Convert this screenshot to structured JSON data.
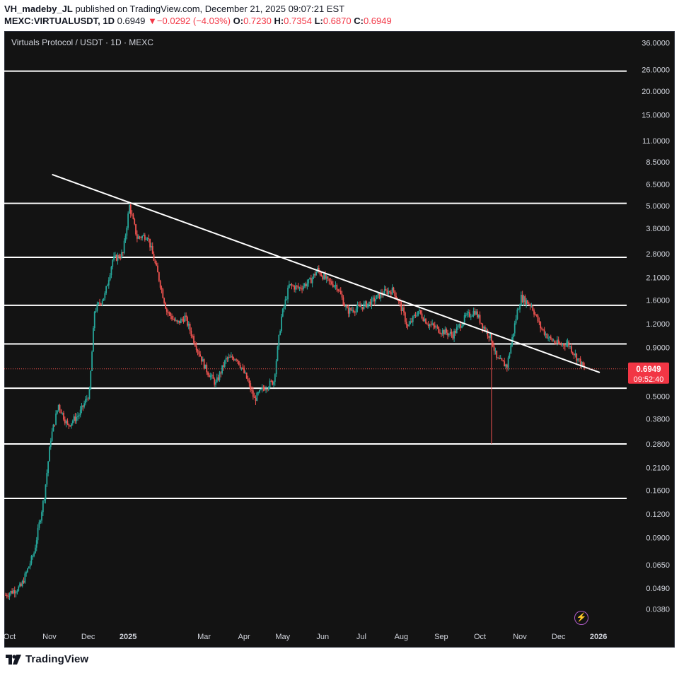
{
  "header": {
    "publisher": "VH_madeby_JL",
    "published_text": "published on TradingView.com, December 21, 2025 09:07:21 EST",
    "symbol": "MEXC:VIRTUALUSDT, 1D",
    "last": "0.6949",
    "change_arrow": "▼",
    "change": "−0.0292 (−4.03%)",
    "o_label": "O:",
    "o_value": "0.7230",
    "h_label": "H:",
    "h_value": "0.7354",
    "l_label": "L:",
    "l_value": "0.6870",
    "c_label": "C:",
    "c_value": "0.6949"
  },
  "symbol_title": "Virtuals Protocol / USDT · 1D · MEXC",
  "price_badge": {
    "price": "0.6949",
    "countdown": "09:52:40"
  },
  "footer": {
    "brand": "TradingView"
  },
  "colors": {
    "background": "#131313",
    "up": "#26a69a",
    "down": "#ef5350",
    "axis_text": "#d1d4dc",
    "level_line": "#ffffff",
    "badge": "#f23645"
  },
  "icons": {
    "alert": "lightning-bolt-icon",
    "logo": "tradingview-logo-icon"
  },
  "chart_data": {
    "type": "candlestick",
    "title": "Virtuals Protocol / USDT · 1D · MEXC",
    "y_scale": "log",
    "ylim": [
      0.033,
      40
    ],
    "y_ticks": [
      "36.0000",
      "26.0000",
      "20.0000",
      "15.0000",
      "11.0000",
      "8.5000",
      "6.5000",
      "5.0000",
      "3.8000",
      "2.8000",
      "2.1000",
      "1.6000",
      "1.2000",
      "0.9000",
      "0.5000",
      "0.3800",
      "0.2800",
      "0.2100",
      "0.1600",
      "0.1200",
      "0.0900",
      "0.0650",
      "0.0490",
      "0.0380"
    ],
    "x_ticks": [
      "Oct",
      "Nov",
      "Dec",
      "2025",
      "Mar",
      "Apr",
      "May",
      "Jun",
      "Jul",
      "Aug",
      "Sep",
      "Oct",
      "Nov",
      "Dec",
      "2026"
    ],
    "x_range": [
      "2024-09-28",
      "2026-01-02"
    ],
    "horizontal_levels": [
      25.5,
      5.15,
      2.68,
      1.5,
      0.94,
      0.55,
      0.28,
      0.145
    ],
    "trendline": {
      "from": [
        "2024-11-03",
        7.3
      ],
      "to": [
        "2026-01-02",
        0.665
      ]
    },
    "last_price": 0.6949,
    "price_path": [
      [
        "2024-09-28",
        0.045
      ],
      [
        "2024-10-10",
        0.05
      ],
      [
        "2024-10-20",
        0.075
      ],
      [
        "2024-10-28",
        0.15
      ],
      [
        "2024-11-02",
        0.3
      ],
      [
        "2024-11-08",
        0.45
      ],
      [
        "2024-11-15",
        0.35
      ],
      [
        "2024-11-24",
        0.4
      ],
      [
        "2024-12-02",
        0.52
      ],
      [
        "2024-12-06",
        1.4
      ],
      [
        "2024-12-14",
        1.7
      ],
      [
        "2024-12-20",
        2.6
      ],
      [
        "2024-12-28",
        2.8
      ],
      [
        "2025-01-02",
        5.0
      ],
      [
        "2025-01-08",
        3.4
      ],
      [
        "2025-01-16",
        3.5
      ],
      [
        "2025-01-24",
        2.2
      ],
      [
        "2025-01-31",
        1.4
      ],
      [
        "2025-02-08",
        1.2
      ],
      [
        "2025-02-14",
        1.3
      ],
      [
        "2025-02-22",
        0.95
      ],
      [
        "2025-03-02",
        0.7
      ],
      [
        "2025-03-10",
        0.58
      ],
      [
        "2025-03-18",
        0.78
      ],
      [
        "2025-03-26",
        0.8
      ],
      [
        "2025-04-03",
        0.62
      ],
      [
        "2025-04-09",
        0.48
      ],
      [
        "2025-04-16",
        0.55
      ],
      [
        "2025-04-24",
        0.6
      ],
      [
        "2025-04-30",
        1.3
      ],
      [
        "2025-05-06",
        1.9
      ],
      [
        "2025-05-14",
        1.85
      ],
      [
        "2025-05-22",
        2.0
      ],
      [
        "2025-05-28",
        2.3
      ],
      [
        "2025-06-05",
        2.0
      ],
      [
        "2025-06-12",
        1.9
      ],
      [
        "2025-06-20",
        1.4
      ],
      [
        "2025-06-28",
        1.45
      ],
      [
        "2025-07-08",
        1.55
      ],
      [
        "2025-07-18",
        1.75
      ],
      [
        "2025-07-26",
        1.8
      ],
      [
        "2025-08-02",
        1.4
      ],
      [
        "2025-08-06",
        1.15
      ],
      [
        "2025-08-14",
        1.4
      ],
      [
        "2025-08-22",
        1.2
      ],
      [
        "2025-09-01",
        1.1
      ],
      [
        "2025-09-10",
        1.05
      ],
      [
        "2025-09-20",
        1.3
      ],
      [
        "2025-09-27",
        1.4
      ],
      [
        "2025-10-04",
        1.15
      ],
      [
        "2025-10-10",
        1.0
      ],
      [
        "2025-10-14",
        0.78
      ],
      [
        "2025-10-22",
        0.72
      ],
      [
        "2025-10-30",
        1.4
      ],
      [
        "2025-11-02",
        1.65
      ],
      [
        "2025-11-10",
        1.5
      ],
      [
        "2025-11-17",
        1.15
      ],
      [
        "2025-11-24",
        1.0
      ],
      [
        "2025-12-02",
        0.93
      ],
      [
        "2025-12-08",
        0.95
      ],
      [
        "2025-12-14",
        0.82
      ],
      [
        "2025-12-21",
        0.6949
      ]
    ],
    "wick_events": [
      [
        "2025-10-10",
        0.28
      ]
    ]
  }
}
